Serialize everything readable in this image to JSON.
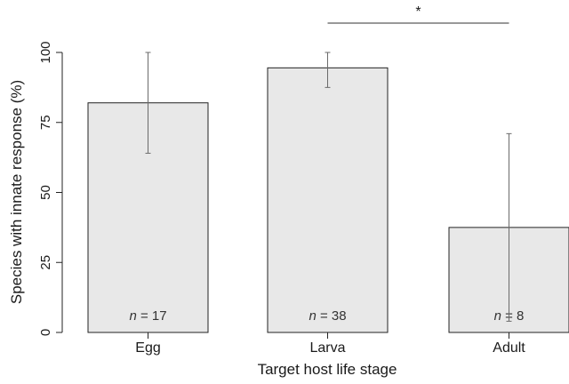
{
  "chart_data": {
    "type": "bar",
    "categories": [
      "Egg",
      "Larva",
      "Adult"
    ],
    "values": [
      82,
      94.5,
      37.5
    ],
    "error_bars": [
      {
        "low": 64,
        "high": 100
      },
      {
        "low": 87.5,
        "high": 100
      },
      {
        "low": 4,
        "high": 71
      }
    ],
    "n_labels": [
      {
        "prefix": "n",
        "text": " = 17"
      },
      {
        "prefix": "n",
        "text": " = 38"
      },
      {
        "prefix": "n",
        "text": " = 8"
      }
    ],
    "xlabel": "Target host life stage",
    "ylabel": "Species with innate response (%)",
    "ylim": [
      0,
      100
    ],
    "yticks": [
      0,
      25,
      50,
      75,
      100
    ],
    "grid": false,
    "significance": {
      "from": "Larva",
      "to": "Adult",
      "label": "*"
    },
    "colors": {
      "bar_fill": "#e8e8e8",
      "bar_stroke": "#222222",
      "error_bar": "#6b6b6b",
      "axis": "#222222"
    }
  }
}
